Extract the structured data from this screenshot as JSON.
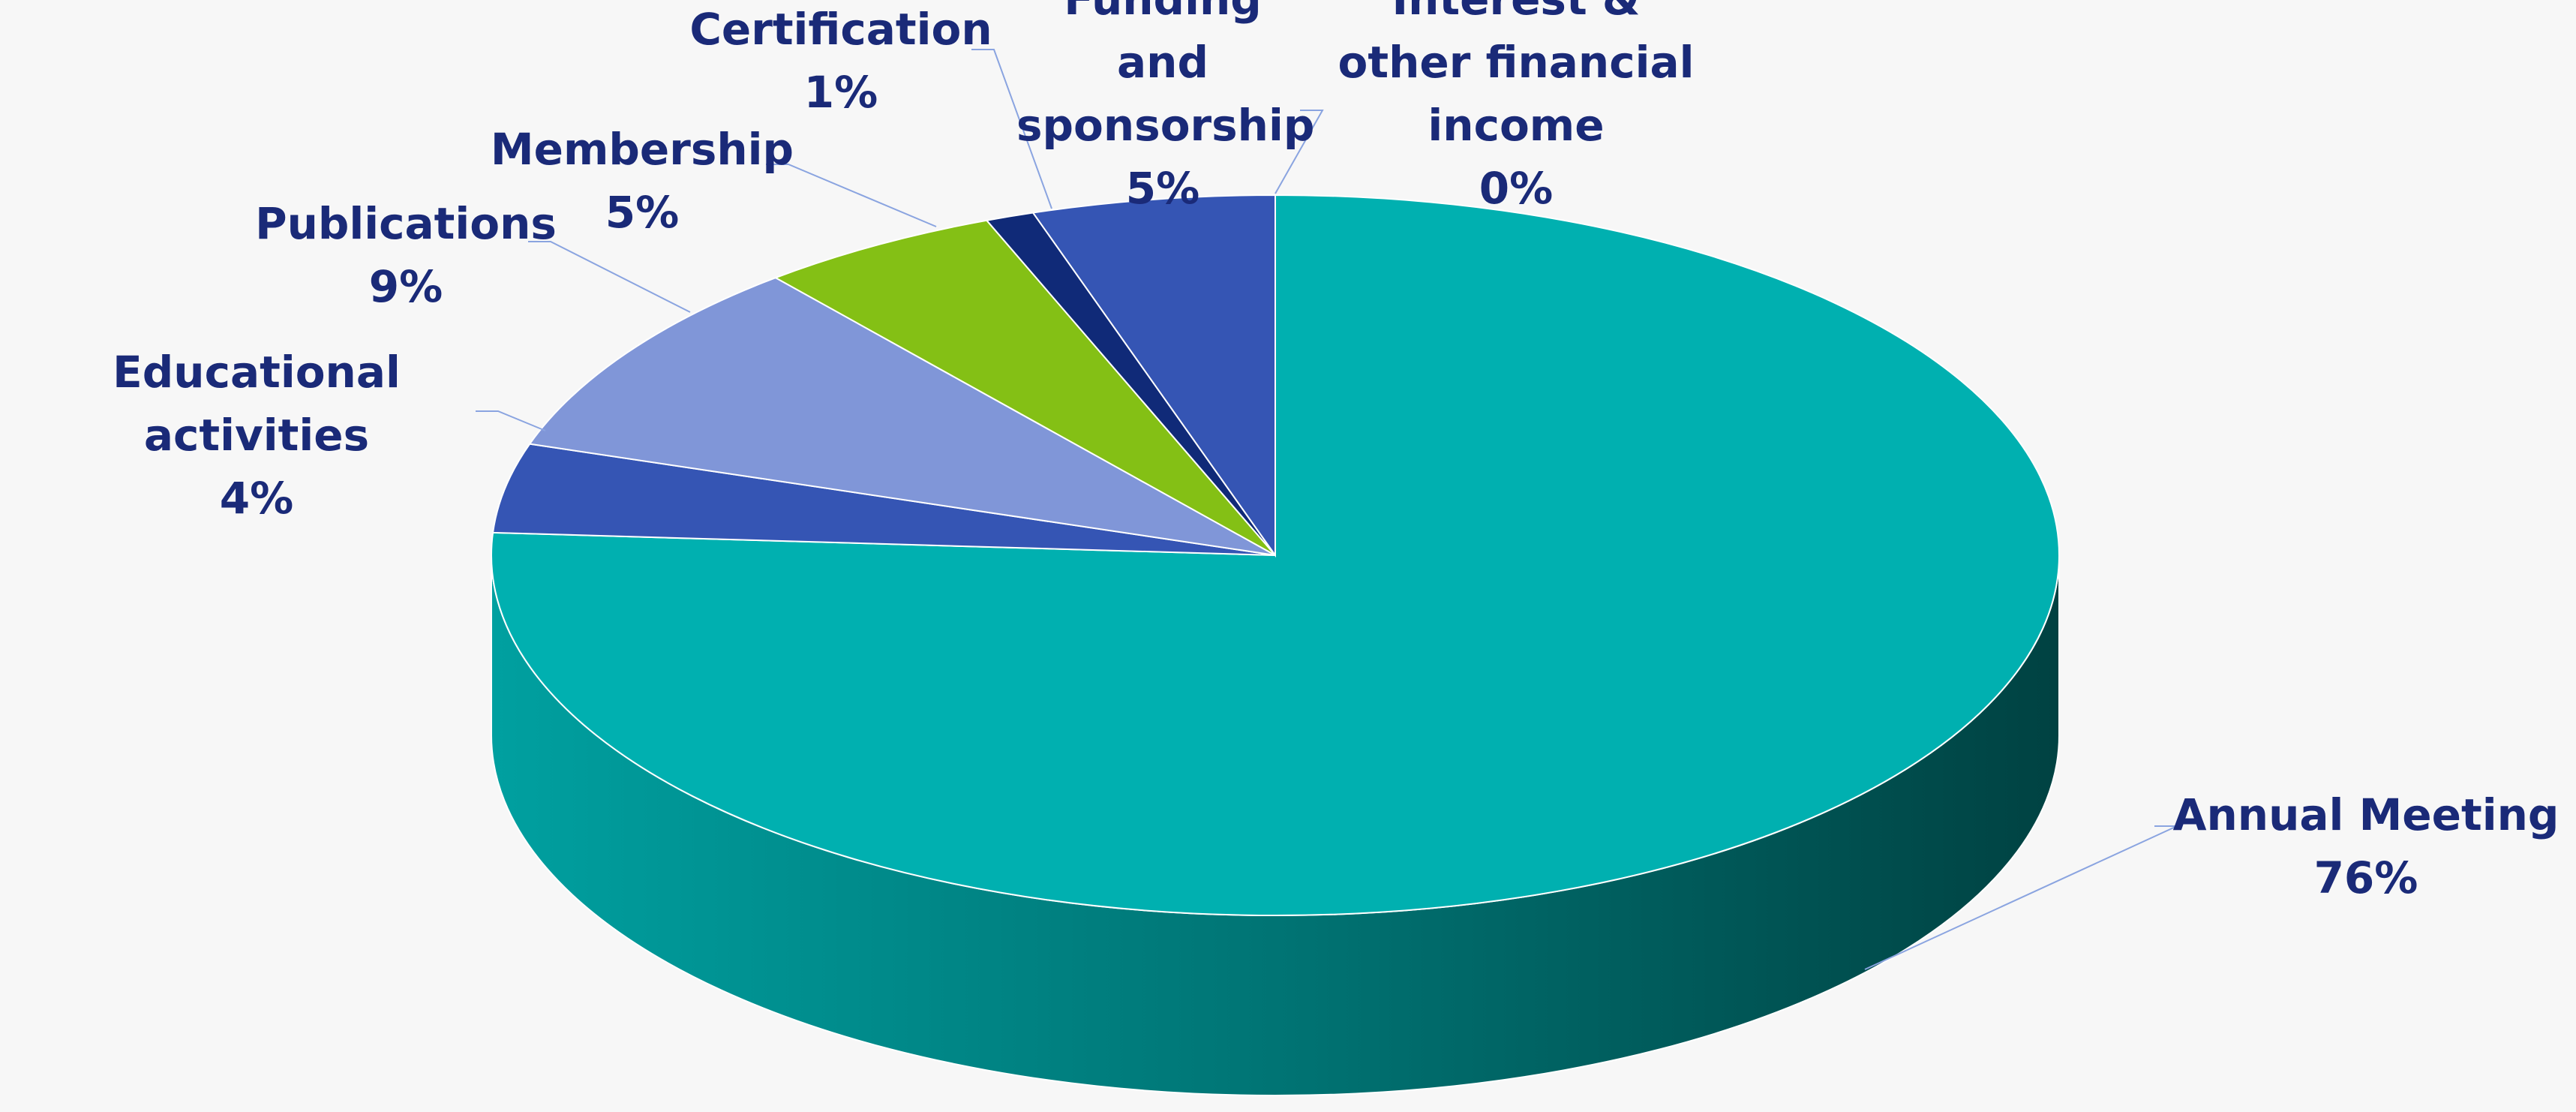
{
  "chart_data": {
    "type": "pie3d",
    "categories": [
      "Annual Meeting",
      "Educational activities",
      "Publications",
      "Membership",
      "Certification",
      "Funding and sponsorship",
      "Interest & other financial income"
    ],
    "values": [
      76,
      4,
      9,
      5,
      1,
      5,
      0
    ],
    "value_labels": [
      "76%",
      "4%",
      "9%",
      "5%",
      "1%",
      "5%",
      "0%"
    ],
    "colors": [
      "#00b0b0",
      "#3555b4",
      "#8096d8",
      "#84c015",
      "#102a78",
      "#3555b4",
      "#1a2a78"
    ]
  }
}
